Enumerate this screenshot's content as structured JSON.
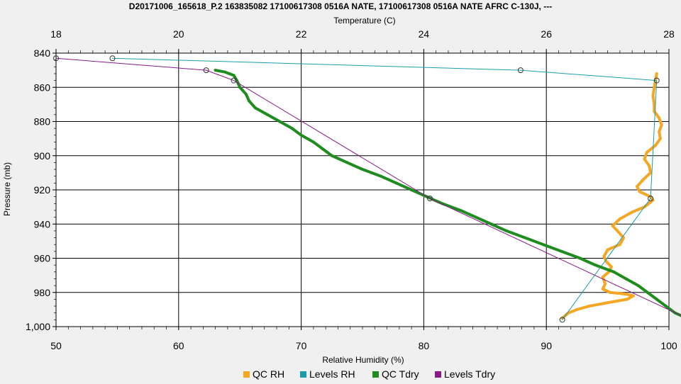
{
  "chart_data": {
    "type": "line",
    "title": "D20171006_165618_P.2 163835082 17100617308 0516A NATE, 17100617308 0516A NATE AFRC C-130J, ---",
    "top_axis_label": "Temperature (C)",
    "bottom_axis_label": "Relative Humidity (%)",
    "left_axis_label": "Pressure (mb)",
    "temperature_axis": {
      "range": [
        18,
        28
      ],
      "ticks": [
        "18",
        "20",
        "22",
        "24",
        "26",
        "28"
      ]
    },
    "humidity_axis": {
      "range": [
        50,
        100
      ],
      "ticks": [
        "50",
        "60",
        "70",
        "80",
        "90",
        "100"
      ]
    },
    "pressure_axis": {
      "range": [
        840,
        1000
      ],
      "inverted": true,
      "ticks": [
        "840",
        "860",
        "880",
        "900",
        "920",
        "940",
        "960",
        "980",
        "1,000"
      ]
    },
    "grid": true,
    "legend_position": "bottom",
    "colors": {
      "qc_rh": "#F5A623",
      "levels_rh": "#1A9DA8",
      "qc_tdry": "#1E8C1E",
      "levels_tdry": "#8A1A8A",
      "background": "#F0F0F0",
      "plot_background": "#FFFFFF",
      "grid": "#000000"
    },
    "series": [
      {
        "name": "QC RH",
        "axis": "humidity",
        "points": [
          [
            99,
            852
          ],
          [
            98.9,
            856
          ],
          [
            98.8,
            860
          ],
          [
            98.7,
            865
          ],
          [
            98.8,
            870
          ],
          [
            98.8,
            874
          ],
          [
            99.2,
            878
          ],
          [
            99.4,
            882
          ],
          [
            99.2,
            886
          ],
          [
            99.3,
            890
          ],
          [
            98.9,
            894
          ],
          [
            98.2,
            898
          ],
          [
            98,
            902
          ],
          [
            98.4,
            906
          ],
          [
            98.5,
            910
          ],
          [
            97.9,
            914
          ],
          [
            97.4,
            918
          ],
          [
            97.6,
            921
          ],
          [
            98.5,
            924
          ],
          [
            98.7,
            926
          ],
          [
            98,
            930
          ],
          [
            97,
            933
          ],
          [
            96,
            937
          ],
          [
            95.4,
            941
          ],
          [
            95.8,
            944
          ],
          [
            96.3,
            948
          ],
          [
            96,
            952
          ],
          [
            95,
            955
          ],
          [
            94.7,
            959
          ],
          [
            94.9,
            962
          ],
          [
            95.3,
            965
          ],
          [
            95.1,
            968
          ],
          [
            94.6,
            971
          ],
          [
            94.8,
            975
          ],
          [
            94.6,
            978
          ],
          [
            95.2,
            980
          ],
          [
            96.5,
            981
          ],
          [
            97.1,
            982
          ],
          [
            96.6,
            984
          ],
          [
            95,
            986
          ],
          [
            93.5,
            988
          ],
          [
            92.5,
            990
          ],
          [
            91.8,
            992
          ],
          [
            91.3,
            995
          ]
        ]
      },
      {
        "name": "Levels RH",
        "axis": "humidity",
        "points": [
          [
            54.6,
            843
          ],
          [
            87.9,
            850
          ],
          [
            99,
            856
          ],
          [
            98.5,
            925
          ],
          [
            91.3,
            996
          ]
        ]
      },
      {
        "name": "QC Tdry",
        "axis": "temperature",
        "points": [
          [
            20.6,
            850
          ],
          [
            20.75,
            851
          ],
          [
            20.9,
            853
          ],
          [
            20.95,
            856
          ],
          [
            21,
            860
          ],
          [
            21.1,
            864
          ],
          [
            21.15,
            868
          ],
          [
            21.25,
            872
          ],
          [
            21.45,
            876
          ],
          [
            21.65,
            880
          ],
          [
            21.85,
            884
          ],
          [
            22,
            888
          ],
          [
            22.2,
            892
          ],
          [
            22.35,
            896
          ],
          [
            22.5,
            900
          ],
          [
            22.75,
            904
          ],
          [
            23,
            908
          ],
          [
            23.3,
            912
          ],
          [
            23.55,
            916
          ],
          [
            23.8,
            920
          ],
          [
            24.05,
            924
          ],
          [
            24.3,
            928
          ],
          [
            24.6,
            932
          ],
          [
            24.85,
            936
          ],
          [
            25.1,
            940
          ],
          [
            25.35,
            944
          ],
          [
            25.65,
            948
          ],
          [
            25.95,
            952
          ],
          [
            26.25,
            956
          ],
          [
            26.55,
            960
          ],
          [
            26.8,
            964
          ],
          [
            27.1,
            968
          ],
          [
            27.3,
            972
          ],
          [
            27.5,
            976
          ],
          [
            27.65,
            980
          ],
          [
            27.8,
            984
          ],
          [
            27.95,
            988
          ],
          [
            28.1,
            992
          ],
          [
            28.35,
            996
          ]
        ]
      },
      {
        "name": "Levels Tdry",
        "axis": "temperature",
        "points": [
          [
            18,
            843
          ],
          [
            20.45,
            850
          ],
          [
            20.9,
            856
          ],
          [
            24.1,
            925
          ],
          [
            28.35,
            996
          ]
        ]
      }
    ]
  },
  "legend": [
    {
      "label": "QC RH",
      "color": "#F5A623"
    },
    {
      "label": "Levels RH",
      "color": "#1A9DA8"
    },
    {
      "label": "QC Tdry",
      "color": "#1E8C1E"
    },
    {
      "label": "Levels Tdry",
      "color": "#8A1A8A"
    }
  ]
}
